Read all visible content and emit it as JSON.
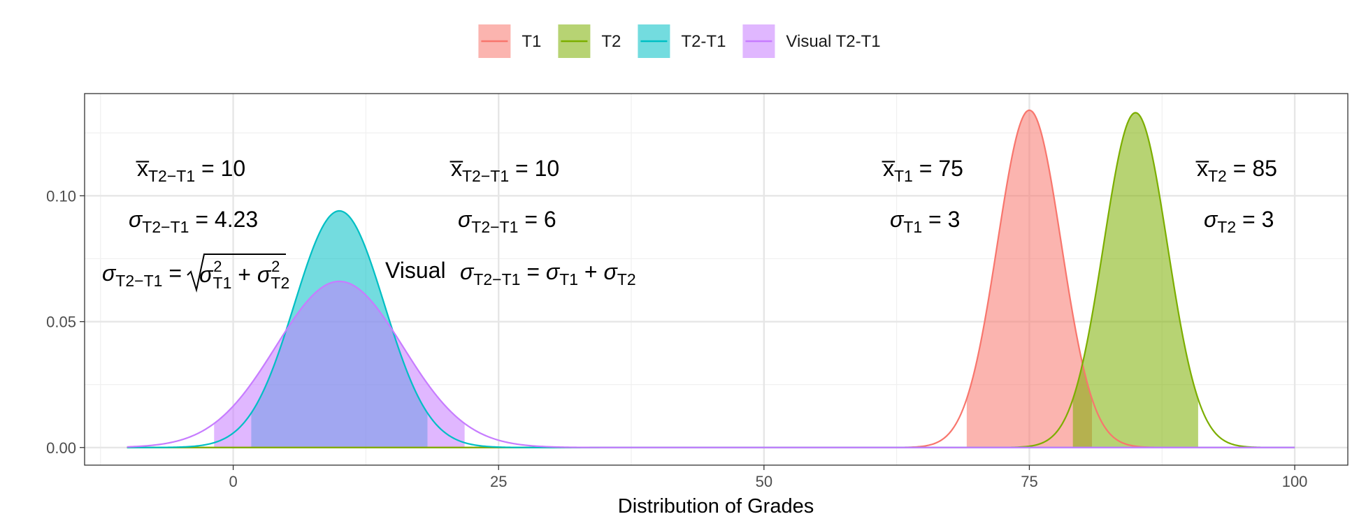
{
  "chart_data": {
    "type": "area",
    "title": "",
    "xlabel": "Distribution of Grades",
    "ylabel": "",
    "xlim": [
      -14,
      105
    ],
    "ylim": [
      -0.007,
      0.1406
    ],
    "x_ticks": [
      0,
      25,
      50,
      75,
      100
    ],
    "x_tick_labels": [
      "0",
      "25",
      "50",
      "75",
      "100"
    ],
    "y_ticks": [
      0.0,
      0.05,
      0.1
    ],
    "y_tick_labels": [
      "0.00",
      "0.05",
      "0.10"
    ],
    "grid": true,
    "legend_position": "top",
    "density_range": [
      -10,
      100
    ],
    "series": [
      {
        "name": "T1",
        "color": "#F8766D",
        "mean": 75,
        "sd": 3,
        "peak": 0.134,
        "shaded_interval": [
          69.1,
          80.9
        ]
      },
      {
        "name": "T2",
        "color": "#7CAE00",
        "mean": 85,
        "sd": 3,
        "peak": 0.133,
        "shaded_interval": [
          79.1,
          90.9
        ]
      },
      {
        "name": "T2-T1",
        "color": "#00BFC4",
        "mean": 10,
        "sd": 4.23,
        "peak": 0.094,
        "shaded_interval": [
          1.7,
          18.3
        ]
      },
      {
        "name": "Visual T2-T1",
        "color": "#C77CFF",
        "mean": 10,
        "sd": 6,
        "peak": 0.066,
        "shaded_interval": [
          -1.8,
          21.8
        ]
      }
    ],
    "annotations": {
      "left": {
        "mean_label": "x̅",
        "mean_sub": "T2−T1",
        "mean_value": " = 10",
        "sd_label": "σ",
        "sd_sub": "T2−T1",
        "sd_value": " = 4.23",
        "formula": {
          "lhs": "σ",
          "lhs_sub": "T2−T1",
          "eq": " = ",
          "term1": "σ",
          "term1_sup": "2",
          "term1_sub": "T1",
          "plus": " + ",
          "term2": "σ",
          "term2_sup": "2",
          "term2_sub": "T2"
        }
      },
      "middle": {
        "mean_label": "x̅",
        "mean_sub": "T2−T1",
        "mean_value": " = 10",
        "sd_label": "σ",
        "sd_sub": "T2−T1",
        "sd_value": " = 6",
        "formula": {
          "prefix": "Visual",
          "lhs": "σ",
          "lhs_sub": "T2−T1",
          "eq": " = ",
          "term1": "σ",
          "term1_sub": "T1",
          "plus": " + ",
          "term2": "σ",
          "term2_sub": "T2"
        }
      },
      "t1": {
        "mean_label": "x̅",
        "mean_sub": "T1",
        "mean_value": " = 75",
        "sd_label": "σ",
        "sd_sub": "T1",
        "sd_value": " = 3"
      },
      "t2": {
        "mean_label": "x̅",
        "mean_sub": "T2",
        "mean_value": " = 85",
        "sd_label": "σ",
        "sd_sub": "T2",
        "sd_value": " = 3"
      }
    }
  }
}
